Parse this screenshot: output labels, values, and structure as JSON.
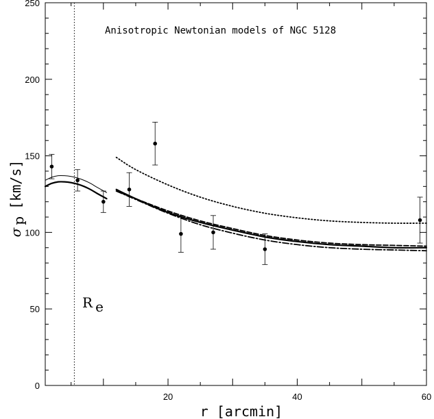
{
  "chart_data": {
    "type": "line",
    "title": "Anisotropic Newtonian models of NGC 5128",
    "xlabel": "r [arcmin]",
    "ylabel": {
      "symbol": "σ",
      "subscript": "p",
      "units": "[km/s]"
    },
    "xlim": [
      1,
      60
    ],
    "ylim": [
      0,
      250
    ],
    "x_ticks": [
      20,
      40,
      60
    ],
    "y_ticks": [
      0,
      50,
      100,
      150,
      200,
      250
    ],
    "reference_line": {
      "x": 5.5,
      "label": "R",
      "label_sub": "e"
    },
    "observations": [
      {
        "x": 2,
        "y": 143,
        "err": 8
      },
      {
        "x": 6,
        "y": 134,
        "err": 7
      },
      {
        "x": 10,
        "y": 120,
        "err": 7
      },
      {
        "x": 14,
        "y": 128,
        "err": 11
      },
      {
        "x": 18,
        "y": 158,
        "err": 14
      },
      {
        "x": 22,
        "y": 99,
        "err": 12
      },
      {
        "x": 27,
        "y": 100,
        "err": 11
      },
      {
        "x": 35,
        "y": 89,
        "err": 10
      },
      {
        "x": 59,
        "y": 108,
        "err": 15
      }
    ],
    "series": [
      {
        "style": "solid-thin",
        "x": [
          1,
          2,
          3,
          4,
          5,
          6,
          7,
          8,
          9,
          10.5
        ],
        "y": [
          134,
          136,
          137,
          137,
          136.5,
          135.5,
          134,
          132,
          129.5,
          126
        ]
      },
      {
        "style": "solid-thick",
        "x": [
          1,
          2,
          3,
          4,
          5,
          6,
          7,
          8,
          9,
          10.5
        ],
        "y": [
          130,
          132,
          133,
          133,
          132.5,
          131.5,
          130,
          128,
          125.5,
          122
        ]
      },
      {
        "style": "solid-thick",
        "x": [
          12,
          15,
          20,
          25,
          30,
          35,
          40,
          45,
          50,
          55,
          60
        ],
        "y": [
          128,
          122,
          113,
          106.5,
          101.5,
          97,
          94,
          92,
          91,
          90,
          90
        ]
      },
      {
        "style": "dashed",
        "x": [
          12,
          15,
          20,
          25,
          30,
          35,
          40,
          45,
          50,
          55,
          60
        ],
        "y": [
          127,
          122,
          114,
          107.5,
          102.5,
          98,
          95,
          93,
          92,
          91.5,
          91
        ]
      },
      {
        "style": "dash-dot",
        "x": [
          12,
          15,
          20,
          25,
          30,
          35,
          40,
          45,
          50,
          55,
          60
        ],
        "y": [
          127,
          121.5,
          112.5,
          105,
          99.5,
          95,
          92,
          90,
          89,
          88.5,
          88
        ]
      },
      {
        "style": "dotted",
        "x": [
          12,
          15,
          20,
          25,
          30,
          35,
          40,
          45,
          50,
          55,
          60
        ],
        "y": [
          149,
          141,
          131,
          123,
          117,
          112.5,
          109.5,
          107.5,
          106.5,
          106,
          106
        ]
      }
    ]
  }
}
